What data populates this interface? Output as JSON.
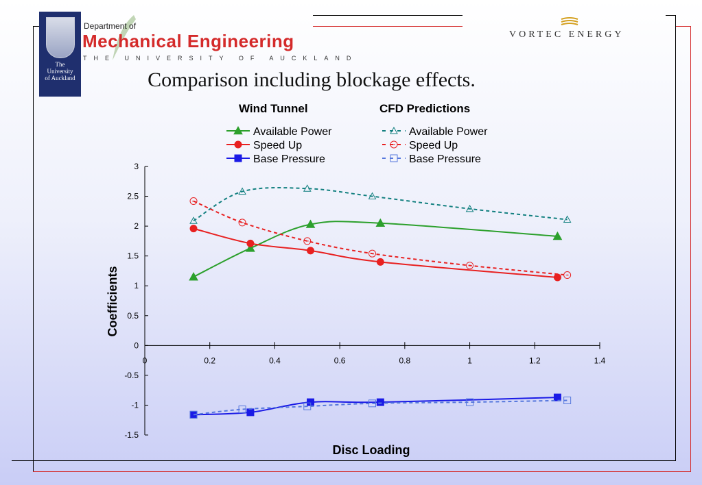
{
  "header": {
    "dept_prefix": "Department of",
    "dept_name": "Mechanical Engineering",
    "university": "THE UNIVERSITY OF AUCKLAND",
    "crest_text_1": "The",
    "crest_text_2": "University",
    "crest_text_3": "of Auckland",
    "partner": "VORTEC ENERGY"
  },
  "slide_title": "Comparison including blockage effects.",
  "colors": {
    "available_power": "#2ca02c",
    "speed_up": "#e82020",
    "base_pressure": "#1a1ae6",
    "cfd_available_power": "#138080",
    "cfd_speed_up": "#e82020",
    "cfd_base_pressure": "#5577dd",
    "frame_red": "#d42a2a"
  },
  "chart_data": {
    "type": "line",
    "xlabel": "Disc Loading",
    "ylabel": "Coefficients",
    "xlim": [
      0,
      1.4
    ],
    "ylim": [
      -1.5,
      3
    ],
    "x_ticks": [
      "0",
      "0.2",
      "0.4",
      "0.6",
      "0.8",
      "1",
      "1.2",
      "1.4"
    ],
    "y_ticks": [
      "3",
      "2.5",
      "2",
      "1.5",
      "1",
      "0.5",
      "0",
      "-0.5",
      "-1",
      "-1.5"
    ],
    "legend_headings": [
      "Wind Tunnel",
      "CFD Predictions"
    ],
    "series": [
      {
        "name": "Available Power",
        "group": "Wind Tunnel",
        "marker": "filled-triangle",
        "dash": "solid",
        "x": [
          0.15,
          0.325,
          0.51,
          0.725,
          1.27
        ],
        "y": [
          1.15,
          1.63,
          2.03,
          2.05,
          1.83
        ]
      },
      {
        "name": "Speed Up",
        "group": "Wind Tunnel",
        "marker": "filled-circle",
        "dash": "solid",
        "x": [
          0.15,
          0.325,
          0.51,
          0.725,
          1.27
        ],
        "y": [
          1.96,
          1.71,
          1.59,
          1.4,
          1.14
        ]
      },
      {
        "name": "Base Pressure",
        "group": "Wind Tunnel",
        "marker": "filled-square",
        "dash": "solid",
        "x": [
          0.15,
          0.325,
          0.51,
          0.725,
          1.27
        ],
        "y": [
          -1.16,
          -1.12,
          -0.95,
          -0.95,
          -0.87
        ]
      },
      {
        "name": "Available Power",
        "group": "CFD Predictions",
        "marker": "open-triangle",
        "dash": "dashed",
        "x": [
          0.15,
          0.3,
          0.5,
          0.7,
          1.0,
          1.3
        ],
        "y": [
          2.09,
          2.58,
          2.63,
          2.5,
          2.29,
          2.11
        ]
      },
      {
        "name": "Speed Up",
        "group": "CFD Predictions",
        "marker": "open-circle",
        "dash": "dashed",
        "x": [
          0.15,
          0.3,
          0.5,
          0.7,
          1.0,
          1.3
        ],
        "y": [
          2.42,
          2.06,
          1.75,
          1.54,
          1.34,
          1.18
        ]
      },
      {
        "name": "Base Pressure",
        "group": "CFD Predictions",
        "marker": "open-square",
        "dash": "dashed",
        "x": [
          0.15,
          0.3,
          0.5,
          0.7,
          1.0,
          1.3
        ],
        "y": [
          -1.16,
          -1.07,
          -1.02,
          -0.97,
          -0.95,
          -0.92
        ]
      }
    ]
  }
}
